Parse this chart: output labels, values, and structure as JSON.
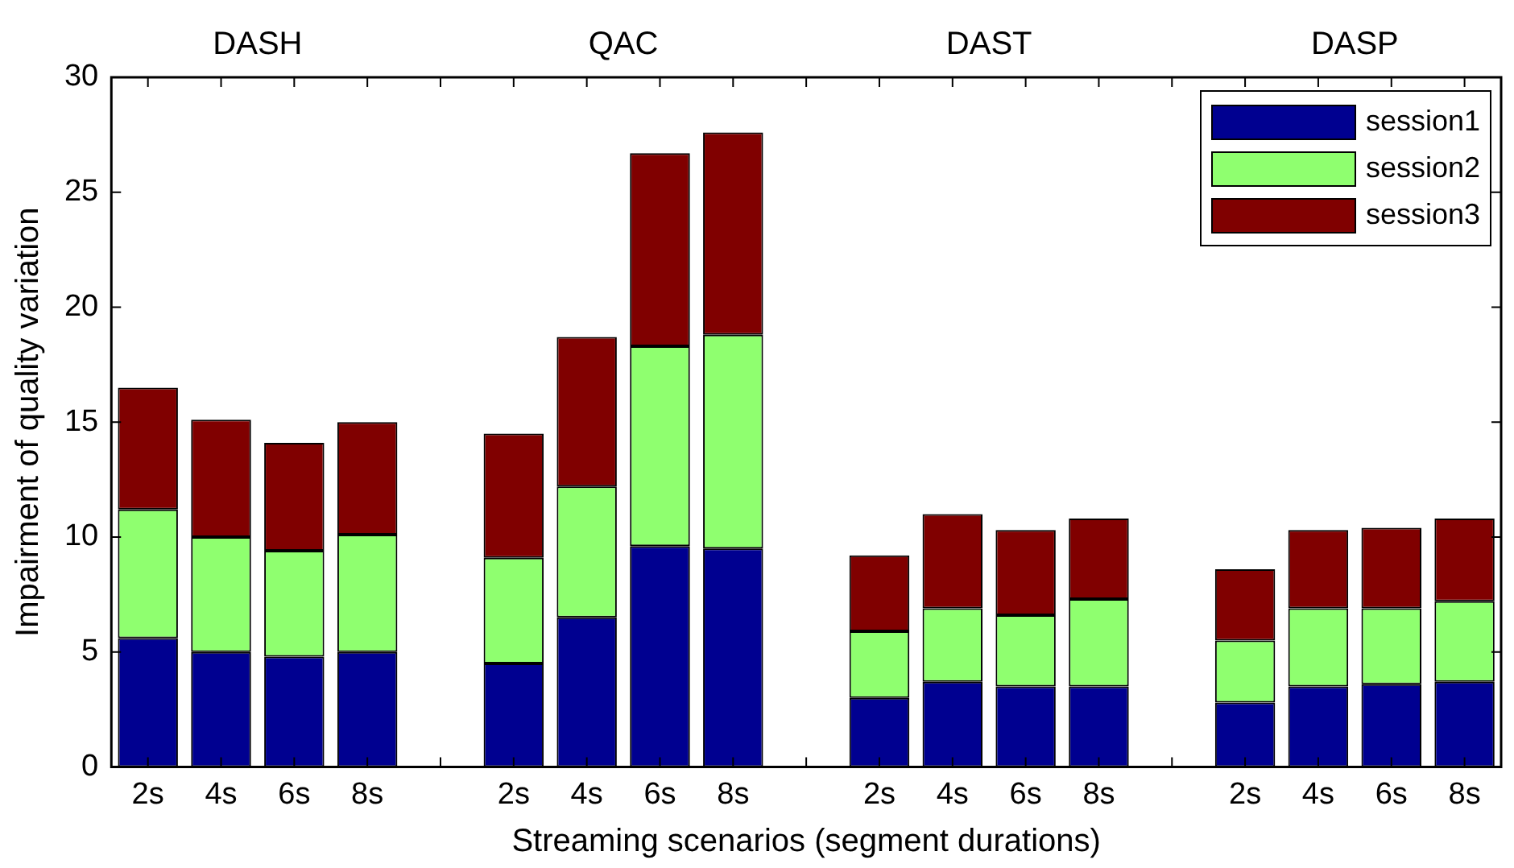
{
  "chart_data": {
    "type": "bar",
    "stacked": true,
    "xlabel": "Streaming scenarios (segment durations)",
    "ylabel": "Impairment of quality variation",
    "categories": [
      "2s",
      "4s",
      "6s",
      "8s",
      null,
      "2s",
      "4s",
      "6s",
      "8s",
      null,
      "2s",
      "4s",
      "6s",
      "8s",
      null,
      "2s",
      "4s",
      "6s",
      "8s"
    ],
    "series": [
      {
        "name": "session1",
        "color": "#000090",
        "values": [
          5.6,
          5.0,
          4.8,
          5.0,
          null,
          4.5,
          6.5,
          9.6,
          9.5,
          null,
          3.0,
          3.7,
          3.5,
          3.5,
          null,
          2.8,
          3.5,
          3.6,
          3.7
        ]
      },
      {
        "name": "session2",
        "color": "#8fff6f",
        "values": [
          5.6,
          5.0,
          4.6,
          5.1,
          null,
          4.6,
          5.7,
          8.7,
          9.3,
          null,
          2.9,
          3.2,
          3.1,
          3.8,
          null,
          2.7,
          3.4,
          3.3,
          3.5
        ]
      },
      {
        "name": "session3",
        "color": "#800000",
        "values": [
          5.3,
          5.1,
          4.7,
          4.9,
          null,
          5.4,
          6.5,
          8.4,
          8.8,
          null,
          3.3,
          4.1,
          3.7,
          3.5,
          null,
          3.1,
          3.4,
          3.5,
          3.6
        ]
      }
    ],
    "annotations": [
      "DASH",
      "QAC",
      "DAST",
      "DASP"
    ],
    "ylim": [
      0,
      30
    ],
    "yticks": [
      0,
      5,
      10,
      15,
      20,
      25,
      30
    ],
    "grid": false,
    "legend": "top right"
  }
}
